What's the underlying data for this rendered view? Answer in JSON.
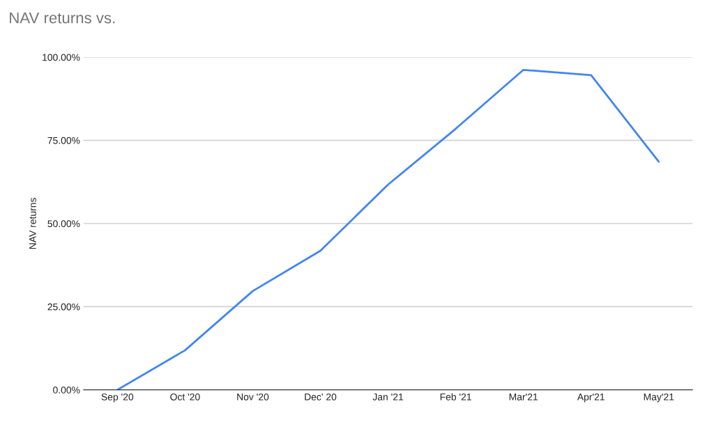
{
  "chart_data": {
    "type": "line",
    "title": "NAV returns vs.",
    "ylabel": "NAV returns",
    "categories": [
      "Sep '20",
      "Oct '20",
      "Nov '20",
      "Dec' 20",
      "Jan '21",
      "Feb '21",
      "Mar'21",
      "Apr'21",
      "May'21"
    ],
    "series": [
      {
        "color": "#4285f4",
        "values": [
          0,
          11.9,
          29.7,
          41.8,
          61.7,
          78.5,
          96.2,
          94.6,
          68.6
        ]
      }
    ],
    "ylim": [
      0,
      100
    ],
    "yticks": [
      {
        "value": 0,
        "label": "0.00%"
      },
      {
        "value": 25,
        "label": "25.00%"
      },
      {
        "value": 50,
        "label": "50.00%"
      },
      {
        "value": 75,
        "label": "75.00%"
      },
      {
        "value": 100,
        "label": "100.00%"
      }
    ],
    "grid": "y",
    "legend": false,
    "marker": "none",
    "line_style": "solid"
  }
}
